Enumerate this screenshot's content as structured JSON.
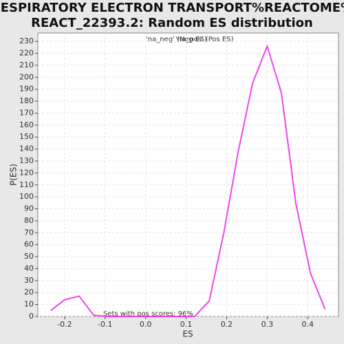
{
  "chart_data": {
    "type": "line",
    "title": [
      "RESPIRATORY ELECTRON TRANSPORT%REACTOME%",
      "REACT_22393.2: Random ES distribution"
    ],
    "x_label": "ES",
    "y_label": "P(ES)",
    "legend": [
      {
        "name": "'na_neg' (Neg ES)",
        "color": "#3333cc"
      },
      {
        "name": "'na_pos' (Pos ES)",
        "color": "#ee3333"
      }
    ],
    "annotation": "Sets with pos scores: 96%",
    "x": [
      -0.234,
      -0.2,
      -0.164,
      -0.128,
      -0.093,
      -0.057,
      -0.021,
      0.014,
      0.05,
      0.086,
      0.121,
      0.157,
      0.193,
      0.228,
      0.264,
      0.3,
      0.335,
      0.371,
      0.407,
      0.443
    ],
    "series": [
      {
        "name": null,
        "color": "#ee44ee",
        "values": [
          5,
          14,
          17,
          1,
          0,
          0,
          0,
          0,
          0,
          0,
          0,
          13,
          70,
          137,
          195,
          226,
          187,
          94,
          36,
          6
        ]
      }
    ],
    "xlim": [
      -0.266,
      0.476
    ],
    "ylim": [
      0,
      237
    ],
    "xticks": [
      -0.2,
      -0.1,
      {
        "value": 0,
        "label": "0.0"
      },
      0.1,
      0.2,
      0.3,
      0.4
    ],
    "yticks": [
      0,
      10,
      20,
      30,
      40,
      50,
      60,
      70,
      80,
      90,
      100,
      110,
      120,
      130,
      140,
      150,
      160,
      170,
      180,
      190,
      200,
      210,
      220,
      230
    ],
    "grid": true
  }
}
